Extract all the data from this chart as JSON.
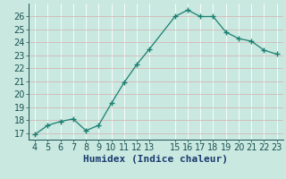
{
  "x": [
    4,
    5,
    6,
    7,
    8,
    9,
    10,
    11,
    12,
    13,
    15,
    16,
    17,
    18,
    19,
    20,
    21,
    22,
    23
  ],
  "y": [
    16.9,
    17.6,
    17.9,
    18.1,
    17.2,
    17.6,
    19.3,
    20.9,
    22.3,
    23.5,
    26.0,
    26.5,
    26.0,
    26.0,
    24.8,
    24.3,
    24.1,
    23.4,
    23.1
  ],
  "xlim": [
    3.5,
    23.5
  ],
  "ylim": [
    16.5,
    27.0
  ],
  "yticks": [
    17,
    18,
    19,
    20,
    21,
    22,
    23,
    24,
    25,
    26
  ],
  "xticks": [
    4,
    5,
    6,
    7,
    8,
    9,
    10,
    11,
    12,
    13,
    15,
    16,
    17,
    18,
    19,
    20,
    21,
    22,
    23
  ],
  "xlabel": "Humidex (Indice chaleur)",
  "line_color": "#1a7f70",
  "marker": "+",
  "bg_color": "#c8e8e0",
  "grid_color_h": "#d4b8b8",
  "grid_color_v": "#ffffff",
  "tick_label_color": "#1a5050",
  "xlabel_color": "#1a3a6e",
  "xlabel_fontsize": 8,
  "tick_fontsize": 7,
  "figw": 3.2,
  "figh": 2.0,
  "dpi": 100
}
